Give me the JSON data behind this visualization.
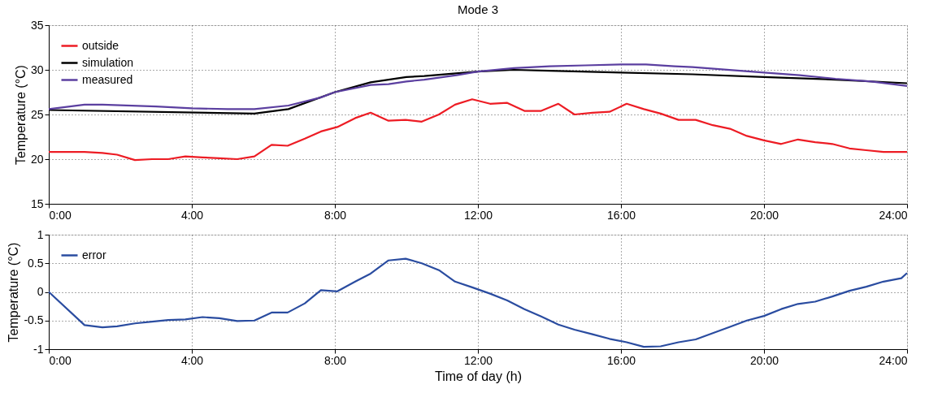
{
  "chart_data": [
    {
      "type": "line",
      "title": "Mode 3",
      "ylabel": "Temperature (°C)",
      "legend": "top left",
      "grid": true,
      "x": [
        0,
        1.0,
        1.5,
        1.91,
        2.41,
        2.89,
        3.34,
        3.82,
        4.3,
        4.77,
        5.27,
        5.75,
        6.23,
        6.68,
        7.16,
        7.61,
        8.07,
        8.57,
        9.0,
        9.5,
        9.98,
        10.43,
        10.91,
        11.36,
        11.84,
        12.34,
        12.82,
        13.3,
        13.77,
        14.25,
        14.7,
        15.2,
        15.68,
        16.16,
        16.64,
        17.11,
        17.61,
        18.09,
        18.57,
        19.05,
        19.52,
        20.0,
        20.48,
        20.95,
        21.43,
        21.91,
        22.39,
        22.86,
        23.34,
        24
      ],
      "xlim": [
        0,
        24
      ],
      "xticks": [
        {
          "value": 0,
          "label": "0:00"
        },
        {
          "value": 4,
          "label": "4:00"
        },
        {
          "value": 8,
          "label": "8:00"
        },
        {
          "value": 12,
          "label": "12:00"
        },
        {
          "value": 16,
          "label": "16:00"
        },
        {
          "value": 20,
          "label": "20:00"
        },
        {
          "value": 24,
          "label": "24:00"
        }
      ],
      "ylim": [
        15,
        35
      ],
      "yticks": [
        15,
        20,
        25,
        30,
        35
      ],
      "series": [
        {
          "name": "outside",
          "color": "#ed1c24",
          "values": [
            20.8,
            20.8,
            20.7,
            20.5,
            19.9,
            20.0,
            20.0,
            20.3,
            20.2,
            20.1,
            20.0,
            20.3,
            21.6,
            21.5,
            22.3,
            23.1,
            23.6,
            24.6,
            25.2,
            24.3,
            24.4,
            24.2,
            25.0,
            26.1,
            26.7,
            26.2,
            26.3,
            25.4,
            25.4,
            26.2,
            25.0,
            25.2,
            25.3,
            26.2,
            25.6,
            25.1,
            24.4,
            24.4,
            23.8,
            23.4,
            22.6,
            22.1,
            21.7,
            22.2,
            21.9,
            21.7,
            21.2,
            21.0,
            20.8,
            20.8
          ]
        },
        {
          "name": "simulation",
          "color": "#000000",
          "x": [
            0,
            5.75,
            6.7,
            8,
            9,
            10,
            10.5,
            12,
            13,
            14,
            16,
            18,
            20,
            22,
            24
          ],
          "values": [
            25.5,
            25.1,
            25.6,
            27.5,
            28.6,
            29.2,
            29.3,
            29.8,
            30.0,
            29.9,
            29.7,
            29.5,
            29.2,
            28.9,
            28.5
          ]
        },
        {
          "name": "measured",
          "color": "#5b3fa0",
          "x": [
            0,
            1,
            1.5,
            3,
            4,
            5,
            5.75,
            6.7,
            7.6,
            8,
            9,
            9.5,
            10,
            10.5,
            11.4,
            12,
            13,
            14,
            15,
            16,
            16.7,
            17.5,
            18,
            20,
            21,
            22,
            23,
            24
          ],
          "values": [
            25.6,
            26.1,
            26.1,
            25.9,
            25.7,
            25.6,
            25.6,
            26.0,
            26.9,
            27.5,
            28.3,
            28.4,
            28.7,
            28.9,
            29.4,
            29.8,
            30.2,
            30.4,
            30.5,
            30.6,
            30.6,
            30.4,
            30.3,
            29.7,
            29.4,
            29.0,
            28.7,
            28.2
          ]
        }
      ]
    },
    {
      "type": "line",
      "xlabel": "Time of day (h)",
      "ylabel": "Temperature (°C)",
      "legend": "top left",
      "grid": true,
      "x": [
        0,
        1.0,
        1.5,
        1.91,
        2.41,
        2.89,
        3.34,
        3.82,
        4.3,
        4.77,
        5.27,
        5.75,
        6.23,
        6.68,
        7.16,
        7.61,
        8.07,
        8.57,
        9.0,
        9.5,
        9.98,
        10.43,
        10.91,
        11.36,
        11.84,
        12.34,
        12.82,
        13.3,
        13.77,
        14.25,
        14.7,
        15.2,
        15.68,
        16.16,
        16.64,
        17.11,
        17.61,
        18.09,
        18.57,
        19.05,
        19.52,
        20.0,
        20.48,
        20.95,
        21.43,
        21.91,
        22.39,
        22.86,
        23.34,
        23.84,
        24
      ],
      "xlim": [
        0,
        24
      ],
      "xticks": [
        {
          "value": 0,
          "label": "0:00"
        },
        {
          "value": 4,
          "label": "4:00"
        },
        {
          "value": 8,
          "label": "8:00"
        },
        {
          "value": 12,
          "label": "12:00"
        },
        {
          "value": 16,
          "label": "16:00"
        },
        {
          "value": 20,
          "label": "20:00"
        },
        {
          "value": 24,
          "label": "24:00"
        }
      ],
      "ylim": [
        -1,
        1
      ],
      "yticks": [
        {
          "value": -1,
          "label": "-1"
        },
        {
          "value": -0.5,
          "label": "-0.5"
        },
        {
          "value": 0,
          "label": "0"
        },
        {
          "value": 0.5,
          "label": "0.5"
        },
        {
          "value": 1,
          "label": "1"
        }
      ],
      "series": [
        {
          "name": "error",
          "color": "#2a4ca0",
          "values": [
            0,
            -0.58,
            -0.62,
            -0.6,
            -0.55,
            -0.52,
            -0.49,
            -0.48,
            -0.44,
            -0.46,
            -0.51,
            -0.5,
            -0.36,
            -0.36,
            -0.2,
            0.03,
            0.01,
            0.18,
            0.32,
            0.55,
            0.58,
            0.5,
            0.38,
            0.18,
            0.08,
            -0.03,
            -0.15,
            -0.3,
            -0.43,
            -0.57,
            -0.66,
            -0.74,
            -0.82,
            -0.88,
            -0.96,
            -0.95,
            -0.88,
            -0.83,
            -0.72,
            -0.61,
            -0.5,
            -0.42,
            -0.3,
            -0.21,
            -0.17,
            -0.08,
            0.02,
            0.09,
            0.18,
            0.24,
            0.33
          ]
        }
      ]
    }
  ]
}
